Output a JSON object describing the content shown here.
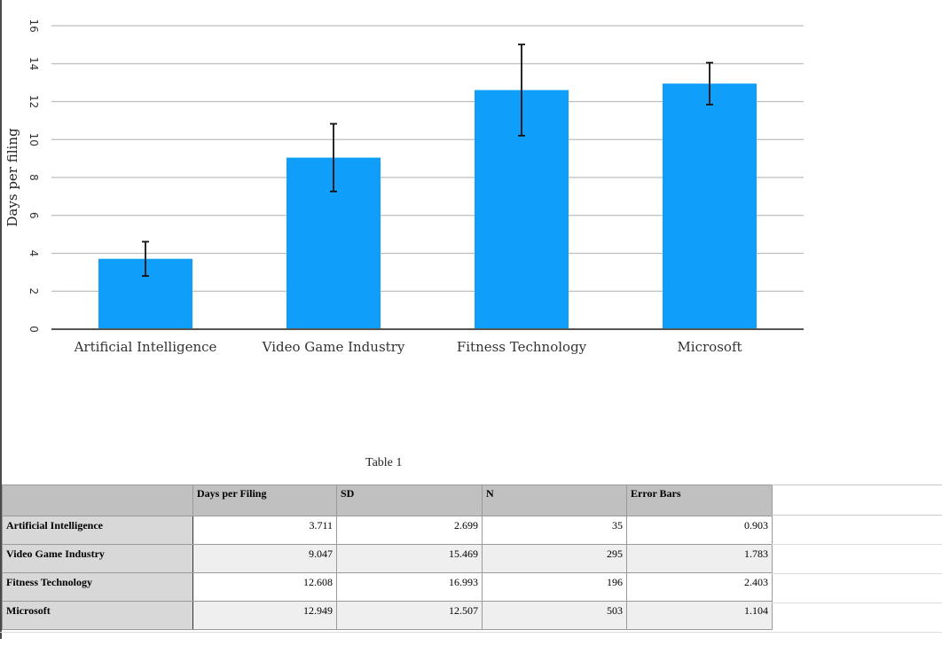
{
  "chart_data": {
    "type": "bar",
    "title": "",
    "xlabel": "",
    "ylabel": "Days per filing",
    "ylim": [
      0,
      16
    ],
    "yticks": [
      0,
      2,
      4,
      6,
      8,
      10,
      12,
      14,
      16
    ],
    "categories": [
      "Artificial Intelligence",
      "Video Game Industry",
      "Fitness Technology",
      "Microsoft"
    ],
    "values": [
      3.711,
      9.047,
      12.608,
      12.949
    ],
    "error_bars": [
      0.903,
      1.783,
      2.403,
      1.104
    ],
    "grid": true,
    "bar_color": "#0f9ffb"
  },
  "table": {
    "caption": "Table 1",
    "corner": "",
    "columns": [
      "Days per Filing",
      "SD",
      "N",
      "Error Bars"
    ],
    "rows": [
      {
        "label": "Artificial Intelligence",
        "cells": [
          "3.711",
          "2.699",
          "35",
          "0.903"
        ]
      },
      {
        "label": "Video Game Industry",
        "cells": [
          "9.047",
          "15.469",
          "295",
          "1.783"
        ]
      },
      {
        "label": "Fitness Technology",
        "cells": [
          "12.608",
          "16.993",
          "196",
          "2.403"
        ]
      },
      {
        "label": "Microsoft",
        "cells": [
          "12.949",
          "12.507",
          "503",
          "1.104"
        ]
      }
    ]
  }
}
